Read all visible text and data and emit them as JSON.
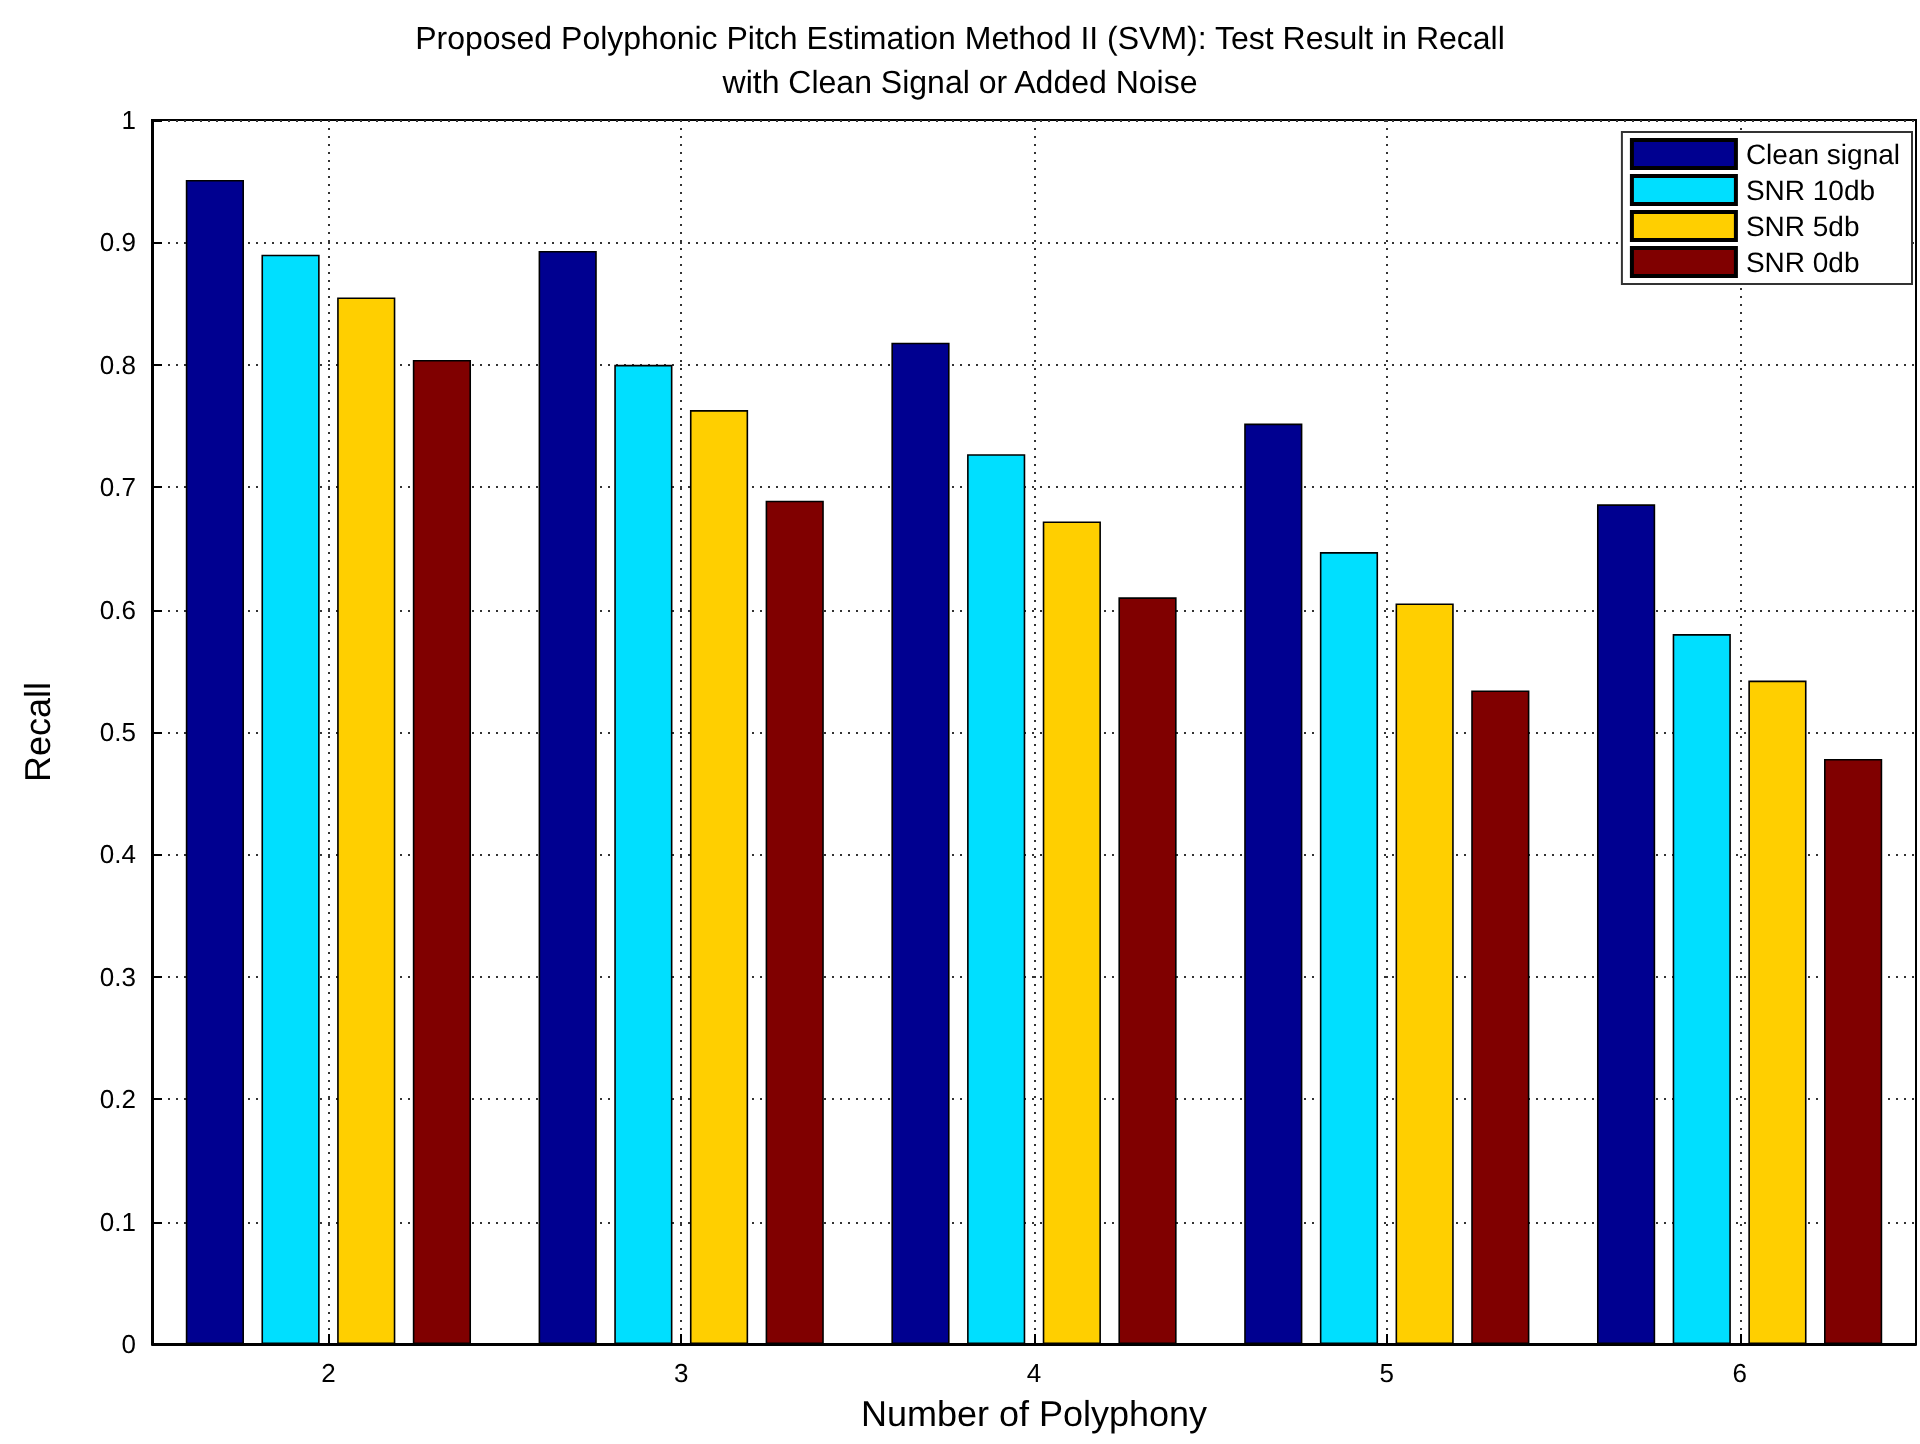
{
  "chart_data": {
    "type": "bar",
    "title": "Proposed Polyphonic Pitch Estimation Method II (SVM): Test Result in Recall\nwith Clean Signal or Added Noise",
    "xlabel": "Number of Polyphony",
    "ylabel": "Recall",
    "x": [
      2,
      3,
      4,
      5,
      6
    ],
    "series": [
      {
        "name": "Clean signal",
        "color": "#000090",
        "values": [
          0.951,
          0.893,
          0.818,
          0.752,
          0.686
        ]
      },
      {
        "name": "SNR 10db",
        "color": "#00dfff",
        "values": [
          0.89,
          0.8,
          0.727,
          0.647,
          0.58
        ]
      },
      {
        "name": "SNR 5db",
        "color": "#ffcf00",
        "values": [
          0.855,
          0.763,
          0.672,
          0.605,
          0.542
        ]
      },
      {
        "name": "SNR 0db",
        "color": "#800000",
        "values": [
          0.804,
          0.689,
          0.61,
          0.534,
          0.478
        ]
      }
    ],
    "xlim": [
      1.5,
      6.5
    ],
    "xticks": [
      2,
      3,
      4,
      5,
      6
    ],
    "ylim": [
      0,
      1
    ],
    "yticks": [
      0,
      0.1,
      0.2,
      0.3,
      0.4,
      0.5,
      0.6,
      0.7,
      0.8,
      0.9,
      1
    ],
    "grid": true,
    "legend": "top right"
  }
}
